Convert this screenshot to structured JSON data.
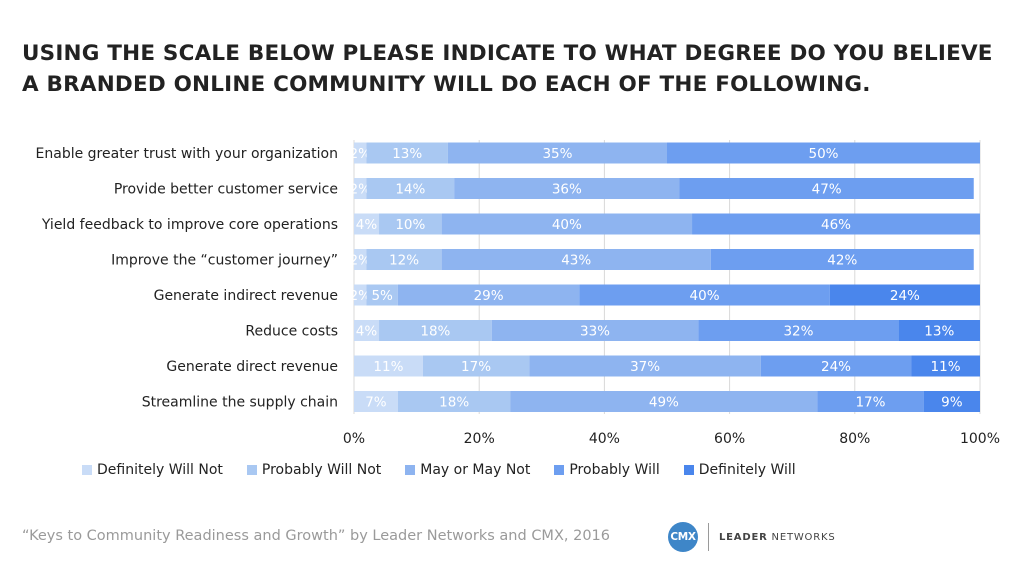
{
  "title_lines": [
    "USING THE SCALE BELOW PLEASE INDICATE TO WHAT DEGREE DO YOU BELIEVE",
    "A BRANDED ONLINE COMMUNITY WILL DO EACH OF THE FOLLOWING."
  ],
  "source": "“Keys to Community Readiness and Growth” by Leader Networks and CMX, 2016",
  "logo": {
    "badge": "CMX",
    "brand_bold": "LEADER",
    "brand_rest": " NETWORKS"
  },
  "chart_data": {
    "type": "bar",
    "orientation": "horizontal",
    "stacked": true,
    "categories": [
      "Enable greater trust with your organization",
      "Provide better customer service",
      "Yield feedback to improve core operations",
      "Improve the “customer journey”",
      "Generate indirect revenue",
      "Reduce costs",
      "Generate direct revenue",
      "Streamline the supply chain"
    ],
    "series": [
      {
        "name": "Definitely Will Not",
        "color": "#c9dcf7",
        "values": [
          2,
          2,
          4,
          2,
          2,
          4,
          11,
          7
        ]
      },
      {
        "name": "Probably Will Not",
        "color": "#a9c8f2",
        "values": [
          13,
          14,
          10,
          12,
          5,
          18,
          17,
          18
        ]
      },
      {
        "name": "May or May Not",
        "color": "#8eb4f0",
        "values": [
          35,
          36,
          40,
          43,
          29,
          33,
          37,
          49
        ]
      },
      {
        "name": "Probably Will",
        "color": "#6d9ef0",
        "values": [
          50,
          47,
          46,
          42,
          40,
          32,
          24,
          17
        ]
      },
      {
        "name": "Definitely Will",
        "color": "#4a86ec",
        "values": [
          0,
          0,
          0,
          0,
          24,
          13,
          11,
          9
        ]
      }
    ],
    "xlim": [
      0,
      100
    ],
    "xticks": [
      "0%",
      "20%",
      "40%",
      "60%",
      "80%",
      "100%"
    ],
    "value_suffix": "%",
    "grid": true,
    "legend_position": "bottom"
  }
}
